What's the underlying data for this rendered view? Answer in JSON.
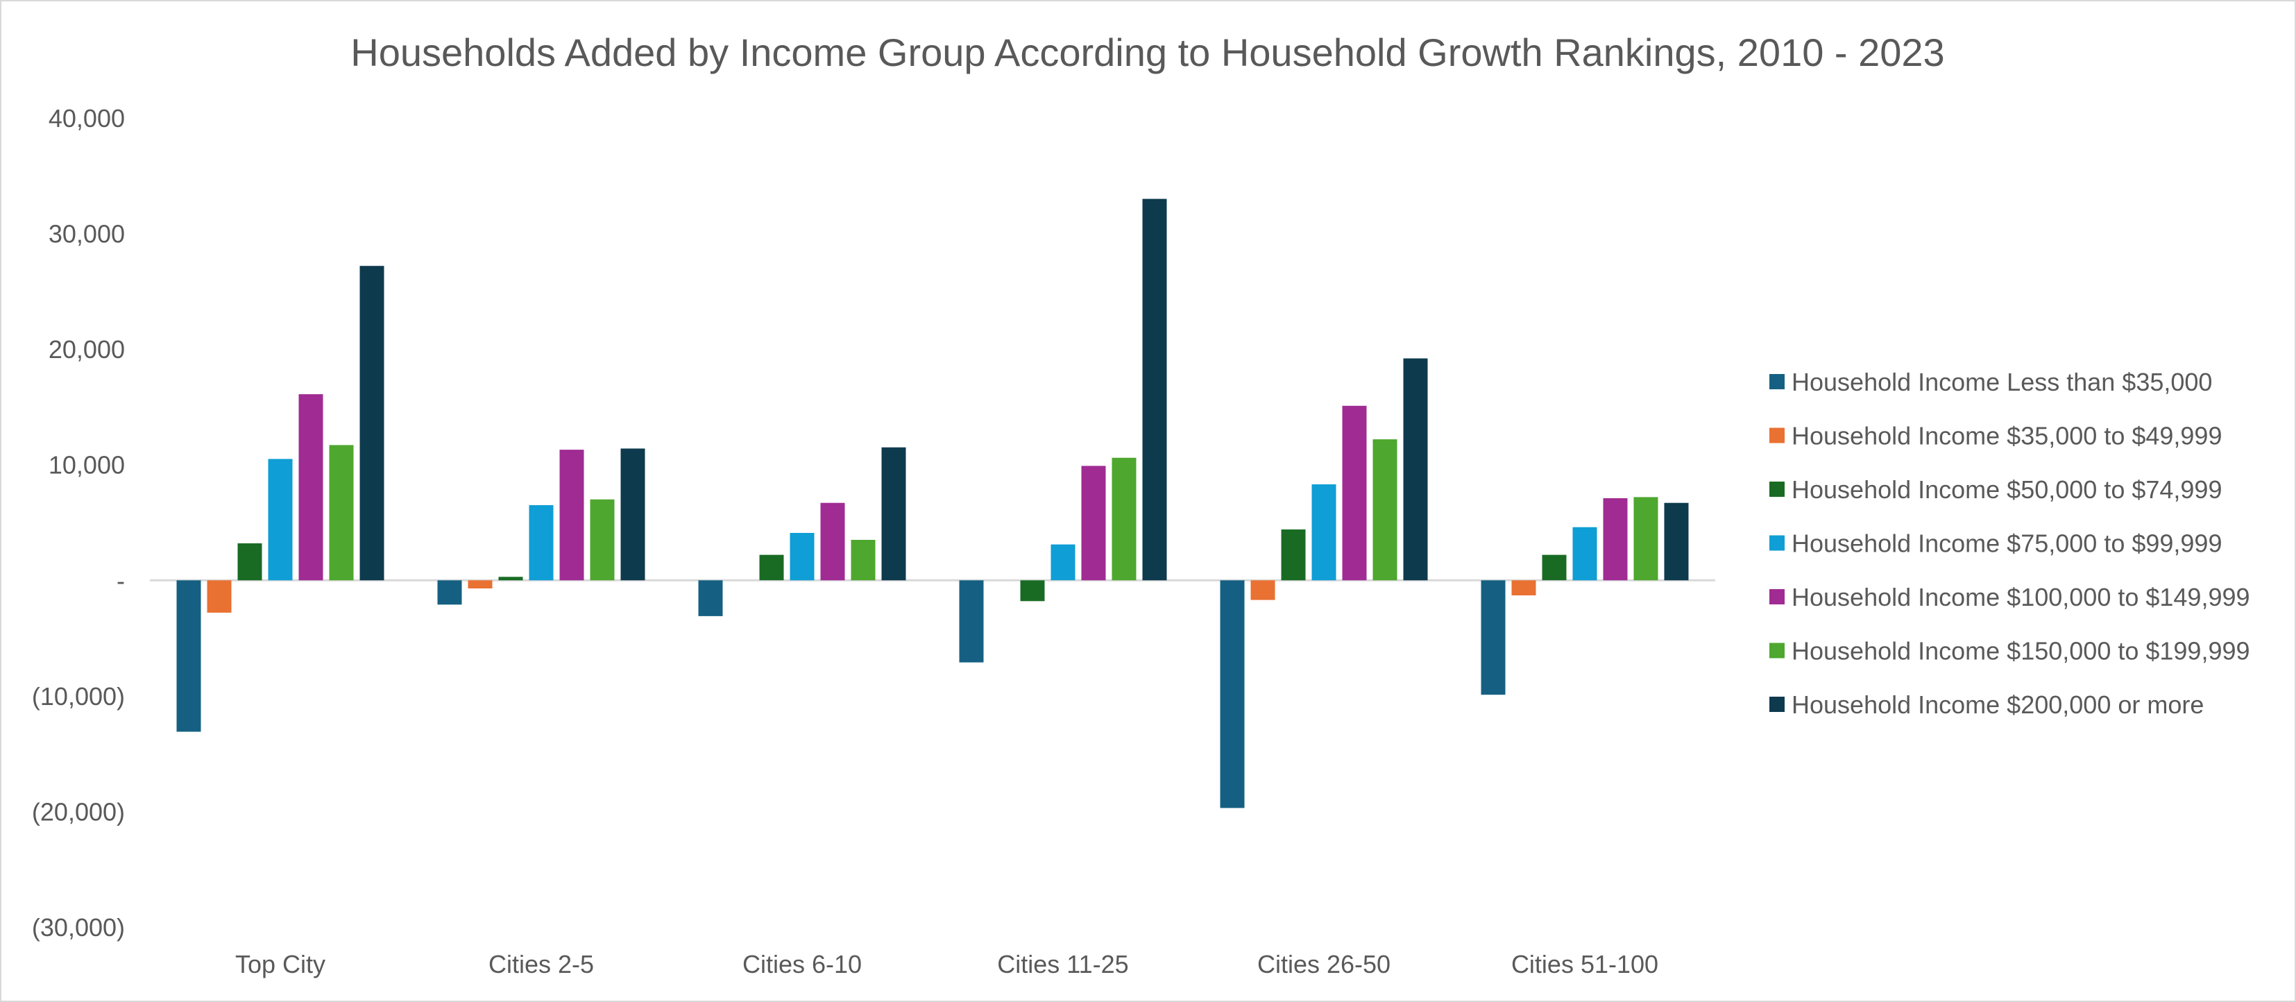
{
  "chart_data": {
    "type": "bar",
    "title": "Households Added by Income Group According to Household Growth Rankings, 2010 - 2023",
    "xlabel": "",
    "ylabel": "",
    "ylim": [
      -30000,
      40000
    ],
    "y_ticks": [
      {
        "value": 40000,
        "label": "40,000"
      },
      {
        "value": 30000,
        "label": "30,000"
      },
      {
        "value": 20000,
        "label": "20,000"
      },
      {
        "value": 10000,
        "label": "10,000"
      },
      {
        "value": 0,
        "label": "-"
      },
      {
        "value": -10000,
        "label": "(10,000)"
      },
      {
        "value": -20000,
        "label": "(20,000)"
      },
      {
        "value": -30000,
        "label": "(30,000)"
      }
    ],
    "grid": false,
    "legend_position": "right",
    "categories": [
      "Top City",
      "Cities 2-5",
      "Cities 6-10",
      "Cities 11-25",
      "Cities 26-50",
      "Cities 51-100"
    ],
    "series": [
      {
        "name": "Household Income Less than $35,000",
        "color": "#156082",
        "values": [
          -13100,
          -2100,
          -3100,
          -7100,
          -19700,
          -9900
        ]
      },
      {
        "name": "Household Income $35,000 to $49,999",
        "color": "#E97132",
        "values": [
          -2800,
          -700,
          0,
          0,
          -1700,
          -1300
        ]
      },
      {
        "name": "Household Income $50,000 to $74,999",
        "color": "#196B24",
        "values": [
          3200,
          300,
          2200,
          -1800,
          4400,
          2200
        ]
      },
      {
        "name": "Household Income $75,000 to $99,999",
        "color": "#0F9ED5",
        "values": [
          10500,
          6500,
          4100,
          3100,
          8300,
          4600
        ]
      },
      {
        "name": "Household Income $100,000 to $149,999",
        "color": "#A02B93",
        "values": [
          16100,
          11300,
          6700,
          9900,
          15100,
          7100
        ]
      },
      {
        "name": "Household Income $150,000 to $199,999",
        "color": "#4EA72E",
        "values": [
          11700,
          7000,
          3500,
          10600,
          12200,
          7200
        ]
      },
      {
        "name": "Household Income $200,000 or more",
        "color": "#0E3A4E",
        "values": [
          27200,
          11400,
          11500,
          33000,
          19200,
          6700
        ]
      }
    ]
  }
}
